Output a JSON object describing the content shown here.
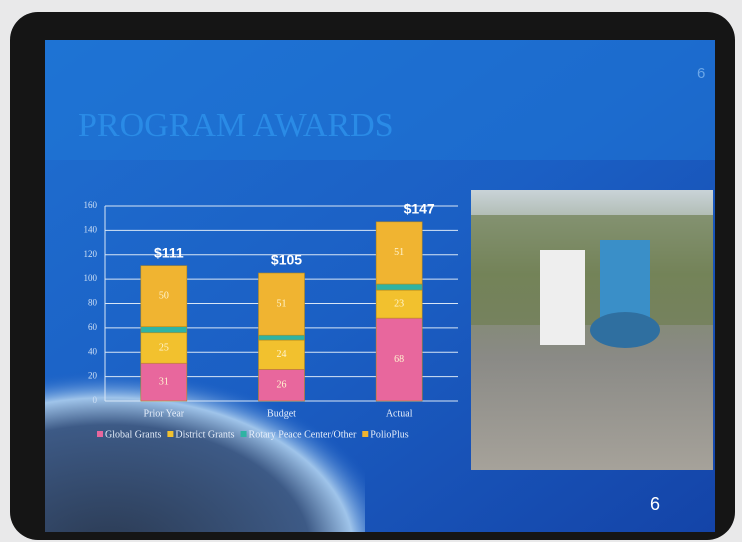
{
  "slide_number": "6",
  "chart_data": {
    "type": "stacked-bar",
    "title": "PROGRAM AWARDS",
    "categories": [
      "Prior Year",
      "Budget",
      "Actual"
    ],
    "series": [
      {
        "name": "Global Grants",
        "color": "#e8679d",
        "values": [
          31,
          26,
          68
        ]
      },
      {
        "name": "District Grants",
        "color": "#f2c12e",
        "values": [
          25,
          24,
          23
        ]
      },
      {
        "name": "Rotary Peace Center/Other",
        "color": "#2fb3a3",
        "values": [
          5,
          4,
          5
        ]
      },
      {
        "name": "PolioPlus",
        "color": "#f0b431",
        "values": [
          50,
          51,
          51
        ]
      }
    ],
    "totals": {
      "values": [
        111,
        105,
        147
      ],
      "value_labels": [
        "$111",
        "$105",
        "$147"
      ]
    },
    "data_labels": [
      true,
      true,
      false,
      true
    ],
    "ylim": [
      0,
      160
    ],
    "yticks": [
      0,
      20,
      40,
      60,
      80,
      100,
      120,
      140,
      160
    ],
    "grid": true
  }
}
